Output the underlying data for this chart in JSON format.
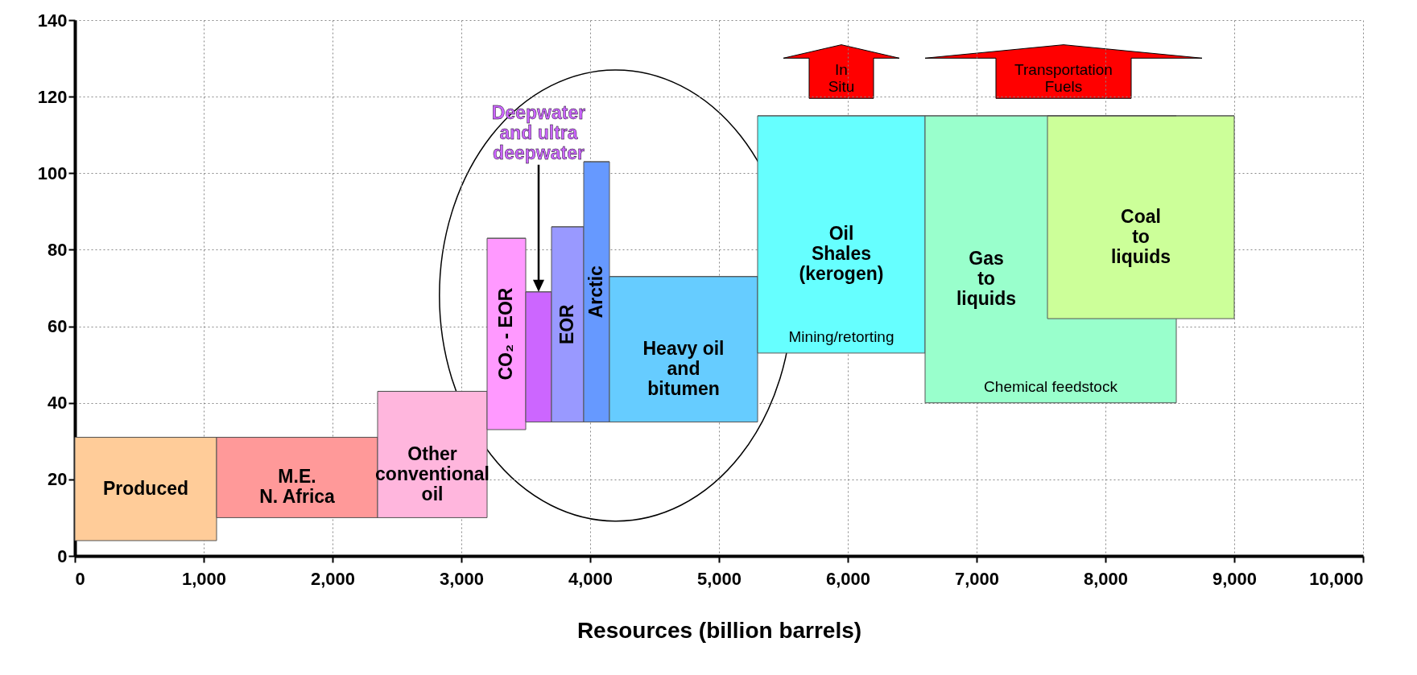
{
  "chart_data": {
    "type": "bar",
    "xlabel": "Resources (billion barrels)",
    "series": [
      {
        "name": "Produced",
        "color": "#ffcc99",
        "x": [
          550
        ],
        "xerrors": [
          550
        ],
        "base": [
          4
        ],
        "values": [
          27
        ]
      },
      {
        "name": "M.E.\nN. Africa",
        "color": "#ff9999",
        "x": [
          1725
        ],
        "xerrors": [
          625
        ],
        "base": [
          10
        ],
        "values": [
          21
        ]
      },
      {
        "name": "Other\nconventional\noil",
        "color": "#ffb6dd",
        "x": [
          2775
        ],
        "xerrors": [
          425
        ],
        "base": [
          10
        ],
        "values": [
          33
        ]
      },
      {
        "name": "CO₂ - EOR",
        "color": "#ff99ff",
        "x": [
          3350
        ],
        "xerrors": [
          150
        ],
        "base": [
          33
        ],
        "values": [
          50
        ]
      },
      {
        "name": "Deepwater\nand ultra\ndeepwater",
        "color": "#cc66ff",
        "x": [
          3600
        ],
        "xerrors": [
          100
        ],
        "base": [
          35
        ],
        "values": [
          34
        ]
      },
      {
        "name": "EOR",
        "color": "#9999ff",
        "x": [
          3825
        ],
        "xerrors": [
          125
        ],
        "base": [
          35
        ],
        "values": [
          51
        ]
      },
      {
        "name": "Arctic",
        "color": "#6699ff",
        "x": [
          4050
        ],
        "xerrors": [
          100
        ],
        "base": [
          35
        ],
        "values": [
          68
        ]
      },
      {
        "name": "Heavy oil\nand\nbitumen",
        "color": "#66ccff",
        "x": [
          4725
        ],
        "xerrors": [
          575
        ],
        "base": [
          35
        ],
        "values": [
          38
        ]
      },
      {
        "name": "Oil\nShales\n(kerogen)",
        "color": "#66ffff",
        "x": [
          5950
        ],
        "xerrors": [
          650
        ],
        "base": [
          53
        ],
        "values": [
          62
        ]
      },
      {
        "name": "Gas\nto\nliquids",
        "color": "#99ffcc",
        "x": [
          7575
        ],
        "xerrors": [
          975
        ],
        "base": [
          40
        ],
        "values": [
          75
        ]
      },
      {
        "name": "Coal\nto\nliquids",
        "color": "#ccff99",
        "x": [
          8275
        ],
        "xerrors": [
          725
        ],
        "base": [
          62
        ],
        "values": [
          53
        ]
      }
    ],
    "xlim": [
      0,
      10000
    ],
    "ylim": [
      0,
      140
    ],
    "xticks": [
      0,
      {
        "value": 1000,
        "label": "1,000"
      },
      {
        "value": 2000,
        "label": "2,000"
      },
      {
        "value": 3000,
        "label": "3,000"
      },
      {
        "value": 4000,
        "label": "4,000"
      },
      {
        "value": 5000,
        "label": "5,000"
      },
      {
        "value": 6000,
        "label": "6,000"
      },
      {
        "value": 7000,
        "label": "7,000"
      },
      {
        "value": 8000,
        "label": "8,000"
      },
      {
        "value": 9000,
        "label": "9,000"
      },
      {
        "value": 10000,
        "label": "10,000"
      }
    ],
    "yticks": [
      0,
      20,
      40,
      60,
      80,
      100,
      120,
      140
    ],
    "grid": true,
    "annotations": [
      "Mining/retorting",
      "Chemical feedstock",
      "In\nSitu",
      "Transportation\nFuels"
    ]
  }
}
